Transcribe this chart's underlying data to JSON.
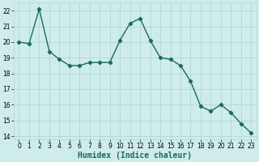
{
  "xlabel": "Humidex (Indice chaleur)",
  "x": [
    0,
    1,
    2,
    3,
    4,
    5,
    6,
    7,
    8,
    9,
    10,
    11,
    12,
    13,
    14,
    15,
    16,
    17,
    18,
    19,
    20,
    21,
    22,
    23
  ],
  "y": [
    20.0,
    19.9,
    22.1,
    19.4,
    18.9,
    18.5,
    18.5,
    18.7,
    18.7,
    18.7,
    20.1,
    21.2,
    21.5,
    20.1,
    19.0,
    18.9,
    18.5,
    17.5,
    15.9,
    15.6,
    16.0,
    15.5,
    14.8,
    14.2
  ],
  "line_color": "#1a6b5a",
  "marker": "D",
  "marker_size": 2.2,
  "line_width": 1.0,
  "bg_color": "#ceecea",
  "grid_color": "#b0d8d4",
  "ylim": [
    13.8,
    22.5
  ],
  "yticks": [
    14,
    15,
    16,
    17,
    18,
    19,
    20,
    21,
    22
  ],
  "xlim": [
    -0.5,
    23.5
  ],
  "xticks": [
    0,
    1,
    2,
    3,
    4,
    5,
    6,
    7,
    8,
    9,
    10,
    11,
    12,
    13,
    14,
    15,
    16,
    17,
    18,
    19,
    20,
    21,
    22,
    23
  ],
  "tick_label_fontsize": 5.5,
  "axis_label_fontsize": 7.0
}
